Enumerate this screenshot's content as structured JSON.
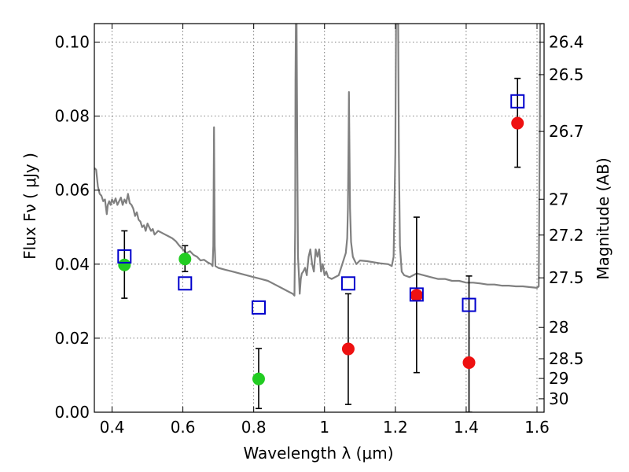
{
  "chart_data": {
    "type": "scatter",
    "title": "",
    "xlabel": "Wavelength  λ (μm)",
    "ylabel": "Flux  Fν  ( μJy )",
    "ylabel_right": "Magnitude (AB)",
    "xlim": [
      0.35,
      1.62
    ],
    "ylim": [
      0.0,
      0.105
    ],
    "grid": true,
    "x_ticks": [
      {
        "value": 0.4,
        "label": "0.4"
      },
      {
        "value": 0.6,
        "label": "0.6"
      },
      {
        "value": 0.8,
        "label": "0.8"
      },
      {
        "value": 1.0,
        "label": "1"
      },
      {
        "value": 1.2,
        "label": "1.2"
      },
      {
        "value": 1.4,
        "label": "1.4"
      },
      {
        "value": 1.6,
        "label": "1.6"
      }
    ],
    "y_ticks": [
      {
        "value": 0.0,
        "label": "0.00"
      },
      {
        "value": 0.02,
        "label": "0.02"
      },
      {
        "value": 0.04,
        "label": "0.04"
      },
      {
        "value": 0.06,
        "label": "0.06"
      },
      {
        "value": 0.08,
        "label": "0.08"
      },
      {
        "value": 0.1,
        "label": "0.10"
      }
    ],
    "right_ticks": [
      {
        "value": 26.4,
        "label": "26.4"
      },
      {
        "value": 26.5,
        "label": "26.5"
      },
      {
        "value": 26.7,
        "label": "26.7"
      },
      {
        "value": 27,
        "label": "27"
      },
      {
        "value": 27.2,
        "label": "27.2"
      },
      {
        "value": 27.5,
        "label": "27.5"
      },
      {
        "value": 28,
        "label": "28"
      },
      {
        "value": 28.5,
        "label": "28.5"
      },
      {
        "value": 29,
        "label": "29"
      },
      {
        "value": 30,
        "label": "30"
      }
    ],
    "series": [
      {
        "marker": "circle",
        "color": "#22cc22",
        "points": [
          {
            "x": 0.435,
            "y": 0.0398,
            "yerr_lo": 0.0308,
            "yerr_hi": 0.049
          },
          {
            "x": 0.606,
            "y": 0.0414,
            "yerr_lo": 0.038,
            "yerr_hi": 0.045
          },
          {
            "x": 0.814,
            "y": 0.009,
            "yerr_lo": 0.001,
            "yerr_hi": 0.0172
          }
        ]
      },
      {
        "marker": "circle",
        "color": "#ee1111",
        "points": [
          {
            "x": 1.067,
            "y": 0.0171,
            "yerr_lo": 0.0021,
            "yerr_hi": 0.032
          },
          {
            "x": 1.26,
            "y": 0.0316,
            "yerr_lo": 0.0107,
            "yerr_hi": 0.0527
          },
          {
            "x": 1.408,
            "y": 0.0134,
            "yerr_lo": 0.0,
            "yerr_hi": 0.0368
          },
          {
            "x": 1.545,
            "y": 0.0781,
            "yerr_lo": 0.0662,
            "yerr_hi": 0.0902
          }
        ]
      },
      {
        "marker": "open-square",
        "color": "#0000cc",
        "points": [
          {
            "x": 0.435,
            "y": 0.0421
          },
          {
            "x": 0.606,
            "y": 0.0348
          },
          {
            "x": 0.814,
            "y": 0.0283
          },
          {
            "x": 1.067,
            "y": 0.0348
          },
          {
            "x": 1.26,
            "y": 0.0318
          },
          {
            "x": 1.408,
            "y": 0.029
          },
          {
            "x": 1.545,
            "y": 0.084
          }
        ]
      },
      {
        "type": "line",
        "color": "#808080",
        "points": [
          [
            0.35,
            0.066
          ],
          [
            0.355,
            0.0655
          ],
          [
            0.36,
            0.061
          ],
          [
            0.365,
            0.059
          ],
          [
            0.37,
            0.0585
          ],
          [
            0.375,
            0.057
          ],
          [
            0.38,
            0.0575
          ],
          [
            0.385,
            0.0535
          ],
          [
            0.388,
            0.056
          ],
          [
            0.392,
            0.057
          ],
          [
            0.396,
            0.056
          ],
          [
            0.4,
            0.0575
          ],
          [
            0.405,
            0.0565
          ],
          [
            0.41,
            0.0578
          ],
          [
            0.415,
            0.056
          ],
          [
            0.42,
            0.057
          ],
          [
            0.425,
            0.058
          ],
          [
            0.43,
            0.056
          ],
          [
            0.435,
            0.0575
          ],
          [
            0.44,
            0.0565
          ],
          [
            0.445,
            0.059
          ],
          [
            0.45,
            0.0565
          ],
          [
            0.455,
            0.056
          ],
          [
            0.46,
            0.055
          ],
          [
            0.465,
            0.053
          ],
          [
            0.47,
            0.054
          ],
          [
            0.475,
            0.052
          ],
          [
            0.48,
            0.0515
          ],
          [
            0.485,
            0.05
          ],
          [
            0.49,
            0.0505
          ],
          [
            0.495,
            0.049
          ],
          [
            0.5,
            0.051
          ],
          [
            0.505,
            0.05
          ],
          [
            0.51,
            0.049
          ],
          [
            0.515,
            0.0495
          ],
          [
            0.52,
            0.048
          ],
          [
            0.53,
            0.049
          ],
          [
            0.54,
            0.0485
          ],
          [
            0.55,
            0.048
          ],
          [
            0.56,
            0.0475
          ],
          [
            0.57,
            0.047
          ],
          [
            0.58,
            0.0462
          ],
          [
            0.59,
            0.045
          ],
          [
            0.6,
            0.044
          ],
          [
            0.61,
            0.043
          ],
          [
            0.62,
            0.0435
          ],
          [
            0.63,
            0.0425
          ],
          [
            0.64,
            0.042
          ],
          [
            0.65,
            0.041
          ],
          [
            0.66,
            0.0412
          ],
          [
            0.67,
            0.0405
          ],
          [
            0.68,
            0.04
          ],
          [
            0.684,
            0.0395
          ],
          [
            0.686,
            0.045
          ],
          [
            0.688,
            0.077
          ],
          [
            0.69,
            0.045
          ],
          [
            0.692,
            0.0395
          ],
          [
            0.7,
            0.039
          ],
          [
            0.72,
            0.0385
          ],
          [
            0.74,
            0.038
          ],
          [
            0.76,
            0.0375
          ],
          [
            0.78,
            0.037
          ],
          [
            0.8,
            0.0365
          ],
          [
            0.82,
            0.036
          ],
          [
            0.84,
            0.0355
          ],
          [
            0.86,
            0.0345
          ],
          [
            0.88,
            0.0335
          ],
          [
            0.9,
            0.0325
          ],
          [
            0.91,
            0.032
          ],
          [
            0.915,
            0.0315
          ],
          [
            0.917,
            0.05
          ],
          [
            0.918,
            0.09
          ],
          [
            0.919,
            0.105
          ],
          [
            0.921,
            0.105
          ],
          [
            0.923,
            0.07
          ],
          [
            0.925,
            0.042
          ],
          [
            0.928,
            0.0365
          ],
          [
            0.93,
            0.032
          ],
          [
            0.933,
            0.036
          ],
          [
            0.936,
            0.0375
          ],
          [
            0.94,
            0.038
          ],
          [
            0.945,
            0.039
          ],
          [
            0.95,
            0.037
          ],
          [
            0.955,
            0.042
          ],
          [
            0.96,
            0.044
          ],
          [
            0.965,
            0.04
          ],
          [
            0.97,
            0.038
          ],
          [
            0.975,
            0.044
          ],
          [
            0.98,
            0.042
          ],
          [
            0.985,
            0.044
          ],
          [
            0.99,
            0.038
          ],
          [
            0.995,
            0.04
          ],
          [
            1.0,
            0.037
          ],
          [
            1.005,
            0.038
          ],
          [
            1.01,
            0.0365
          ],
          [
            1.02,
            0.036
          ],
          [
            1.04,
            0.037
          ],
          [
            1.05,
            0.04
          ],
          [
            1.06,
            0.043
          ],
          [
            1.064,
            0.047
          ],
          [
            1.066,
            0.055
          ],
          [
            1.068,
            0.075
          ],
          [
            1.069,
            0.0865
          ],
          [
            1.07,
            0.075
          ],
          [
            1.072,
            0.055
          ],
          [
            1.075,
            0.046
          ],
          [
            1.08,
            0.042
          ],
          [
            1.085,
            0.041
          ],
          [
            1.09,
            0.04
          ],
          [
            1.1,
            0.041
          ],
          [
            1.12,
            0.0408
          ],
          [
            1.14,
            0.0405
          ],
          [
            1.16,
            0.0402
          ],
          [
            1.18,
            0.04
          ],
          [
            1.19,
            0.0395
          ],
          [
            1.195,
            0.042
          ],
          [
            1.2,
            0.07
          ],
          [
            1.202,
            0.105
          ],
          [
            1.208,
            0.105
          ],
          [
            1.21,
            0.07
          ],
          [
            1.213,
            0.045
          ],
          [
            1.218,
            0.038
          ],
          [
            1.225,
            0.037
          ],
          [
            1.24,
            0.0365
          ],
          [
            1.26,
            0.0375
          ],
          [
            1.28,
            0.037
          ],
          [
            1.3,
            0.0365
          ],
          [
            1.32,
            0.036
          ],
          [
            1.34,
            0.036
          ],
          [
            1.36,
            0.0355
          ],
          [
            1.38,
            0.0355
          ],
          [
            1.4,
            0.035
          ],
          [
            1.42,
            0.035
          ],
          [
            1.44,
            0.0348
          ],
          [
            1.46,
            0.0345
          ],
          [
            1.48,
            0.0345
          ],
          [
            1.5,
            0.0342
          ],
          [
            1.52,
            0.0342
          ],
          [
            1.54,
            0.034
          ],
          [
            1.56,
            0.034
          ],
          [
            1.58,
            0.0338
          ],
          [
            1.6,
            0.0336
          ],
          [
            1.605,
            0.034
          ],
          [
            1.608,
            0.08
          ],
          [
            1.609,
            0.105
          ],
          [
            1.615,
            0.105
          ]
        ]
      }
    ]
  }
}
